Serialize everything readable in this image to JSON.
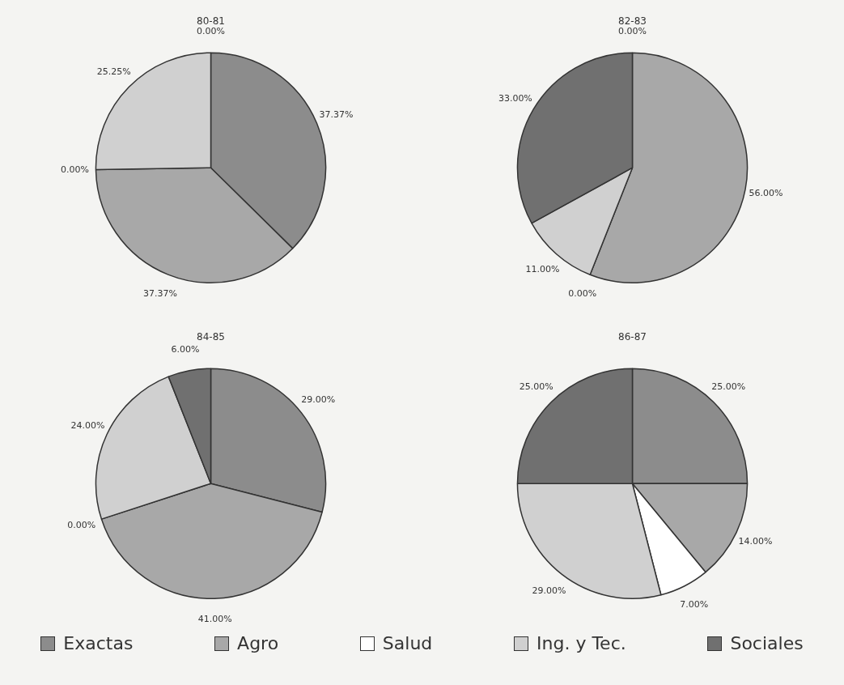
{
  "chart_data": [
    {
      "type": "pie",
      "title": "80-81",
      "categories": [
        "Exactas",
        "Agro",
        "Salud",
        "Ing. y Tec.",
        "Sociales"
      ],
      "values": [
        37.37,
        37.37,
        0,
        25.25,
        0
      ],
      "value_labels": [
        "37.37%",
        "37.37%",
        "0.00%",
        "25.25%",
        "0.00%"
      ],
      "colors": [
        "#8c8c8c",
        "#a8a8a8",
        "#ffffff",
        "#d0d0d0",
        "#707070"
      ],
      "legend": "bottom"
    },
    {
      "type": "pie",
      "title": "82-83",
      "categories": [
        null,
        null,
        null,
        null,
        null
      ],
      "values": [
        0,
        56,
        0,
        11,
        33
      ],
      "value_labels": [
        "0.00%",
        "56.00%",
        "0.00%",
        "11.00%",
        "33.00%"
      ],
      "colors": [
        "#8c8c8c",
        "#a8a8a8",
        "#ffffff",
        "#d0d0d0",
        "#707070"
      ]
    },
    {
      "type": "pie",
      "title": "84-85",
      "categories": [
        null,
        null,
        null,
        null,
        null
      ],
      "values": [
        29,
        41,
        0,
        24,
        6
      ],
      "value_labels": [
        "29.00%",
        "41.00%",
        "0.00%",
        "24.00%",
        "6.00%"
      ],
      "colors": [
        "#8c8c8c",
        "#a8a8a8",
        "#ffffff",
        "#d0d0d0",
        "#707070"
      ]
    },
    {
      "type": "pie",
      "title": "86-87",
      "categories": [
        null,
        null,
        null,
        null,
        null
      ],
      "values": [
        25,
        14,
        7,
        29,
        25
      ],
      "value_labels": [
        "25.00%",
        "14.00%",
        "7.00%",
        "29.00%",
        "25.00%"
      ],
      "colors": [
        "#8c8c8c",
        "#a8a8a8",
        "#ffffff",
        "#d0d0d0",
        "#707070"
      ]
    }
  ]
}
